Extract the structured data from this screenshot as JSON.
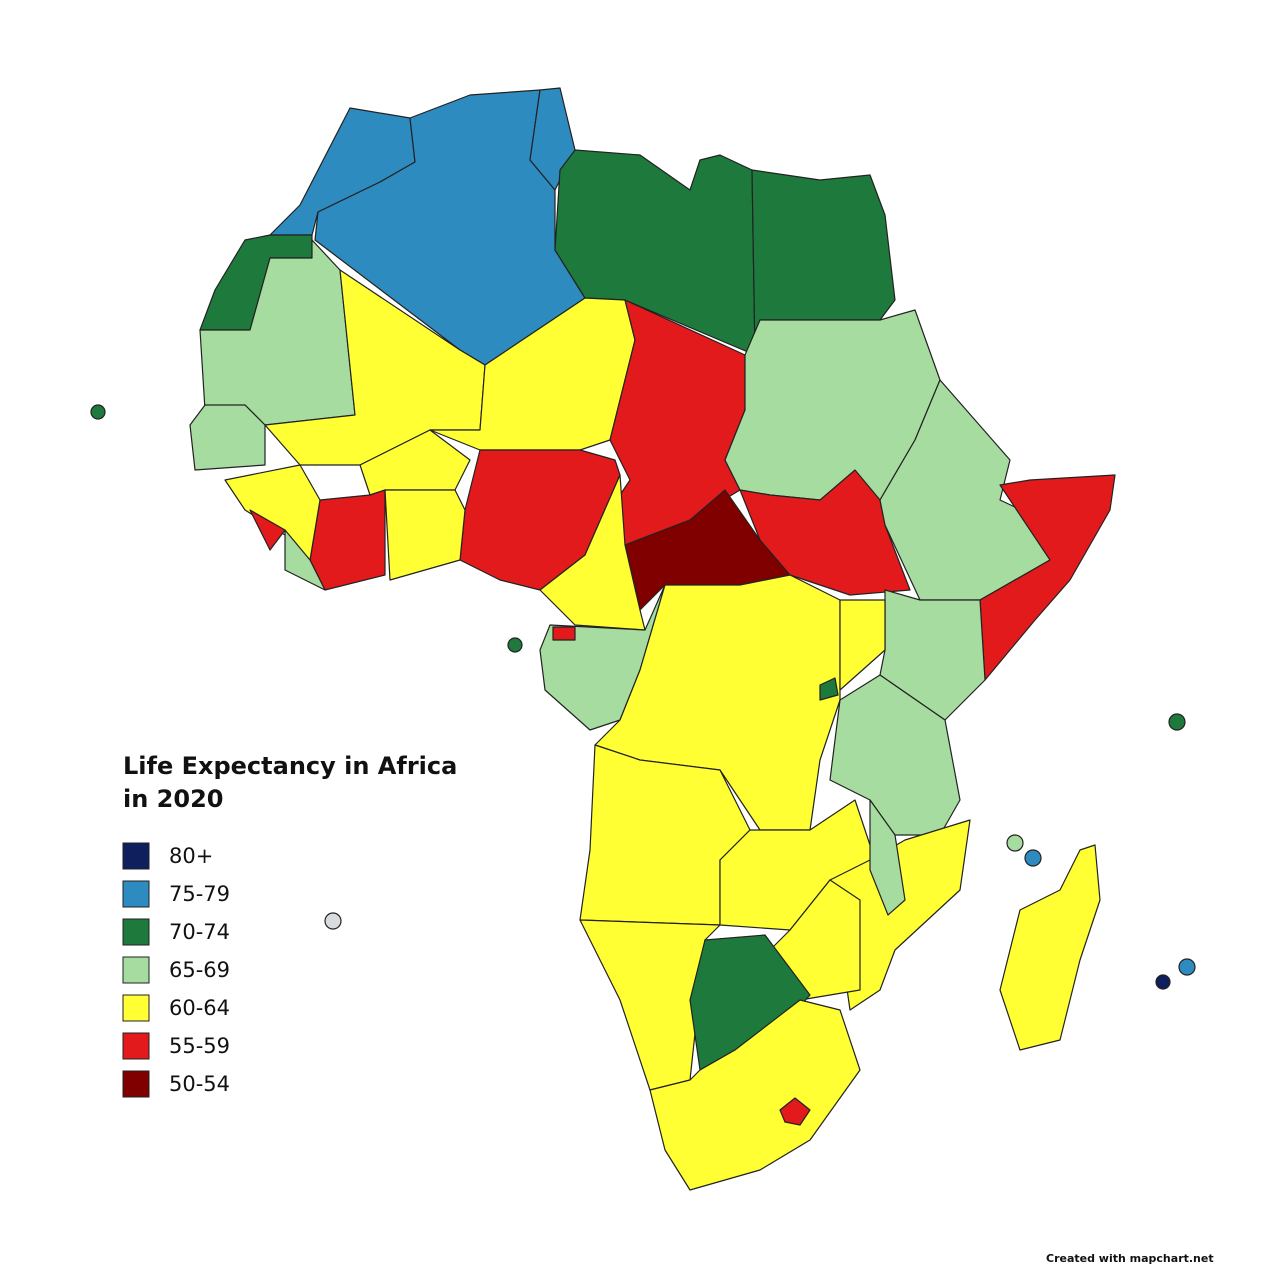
{
  "title": "Life Expectancy in Africa in 2020",
  "legend": [
    {
      "label": "80+",
      "color": "#0f1f5e"
    },
    {
      "label": "75-79",
      "color": "#2e8bc0"
    },
    {
      "label": "70-74",
      "color": "#1e7a3c"
    },
    {
      "label": "65-69",
      "color": "#a7dca0"
    },
    {
      "label": "60-64",
      "color": "#ffff33"
    },
    {
      "label": "55-59",
      "color": "#e31a1c"
    },
    {
      "label": "50-54",
      "color": "#800000"
    }
  ],
  "credit": "Created with mapchart.net"
}
